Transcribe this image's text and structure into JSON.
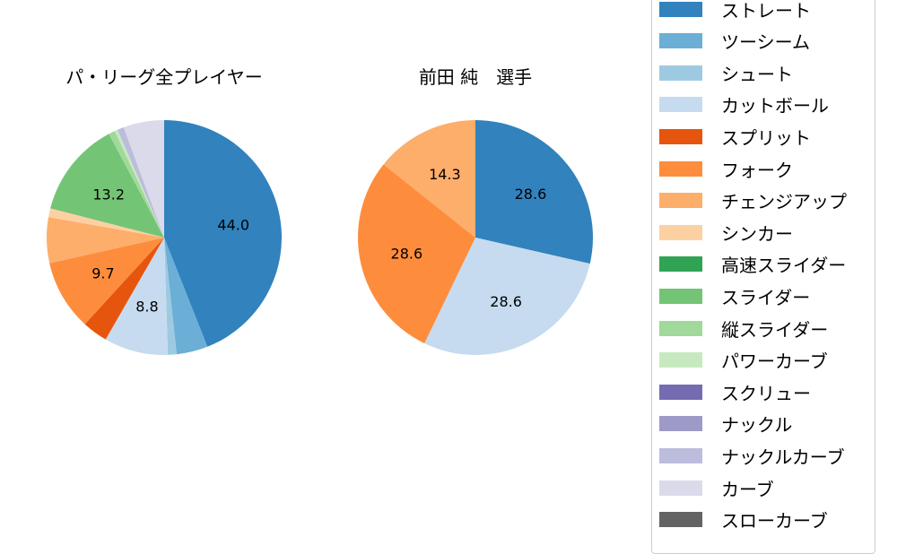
{
  "chart_data": [
    {
      "type": "pie",
      "title": "パ・リーグ全プレイヤー",
      "start_angle": 90,
      "direction": "clockwise",
      "categories": [
        "ストレート",
        "ツーシーム",
        "シュート",
        "カットボール",
        "スプリット",
        "フォーク",
        "チェンジアップ",
        "シンカー",
        "高速スライダー",
        "スライダー",
        "縦スライダー",
        "パワーカーブ",
        "スクリュー",
        "ナックル",
        "ナックルカーブ",
        "カーブ",
        "スローカーブ"
      ],
      "values": [
        44.0,
        4.3,
        1.2,
        8.8,
        3.5,
        9.7,
        6.3,
        1.2,
        0.0,
        13.2,
        0.9,
        0.4,
        0.0,
        0.0,
        0.9,
        5.6,
        0.0
      ],
      "data_labels": {
        "ストレート": "44.0",
        "カットボール": "8.8",
        "フォーク": "9.7",
        "スライダー": "13.2"
      }
    },
    {
      "type": "pie",
      "title": "前田 純　選手",
      "start_angle": 90,
      "direction": "clockwise",
      "categories": [
        "ストレート",
        "ツーシーム",
        "シュート",
        "カットボール",
        "スプリット",
        "フォーク",
        "チェンジアップ",
        "シンカー",
        "高速スライダー",
        "スライダー",
        "縦スライダー",
        "パワーカーブ",
        "スクリュー",
        "ナックル",
        "ナックルカーブ",
        "カーブ",
        "スローカーブ"
      ],
      "values": [
        28.6,
        0,
        0,
        28.6,
        0,
        28.6,
        14.3,
        0,
        0,
        0,
        0,
        0,
        0,
        0,
        0,
        0,
        0
      ],
      "data_labels": {
        "ストレート": "28.6",
        "カットボール": "28.6",
        "フォーク": "28.6",
        "チェンジアップ": "14.3"
      }
    }
  ],
  "titles": {
    "left": "パ・リーグ全プレイヤー",
    "right": "前田 純　選手"
  },
  "legend": {
    "items": [
      {
        "label": "ストレート",
        "color": "#3182bd"
      },
      {
        "label": "ツーシーム",
        "color": "#6baed6"
      },
      {
        "label": "シュート",
        "color": "#9ecae1"
      },
      {
        "label": "カットボール",
        "color": "#c6dbef"
      },
      {
        "label": "スプリット",
        "color": "#e6550d"
      },
      {
        "label": "フォーク",
        "color": "#fd8d3c"
      },
      {
        "label": "チェンジアップ",
        "color": "#fdae6b"
      },
      {
        "label": "シンカー",
        "color": "#fdd0a2"
      },
      {
        "label": "高速スライダー",
        "color": "#31a354"
      },
      {
        "label": "スライダー",
        "color": "#74c476"
      },
      {
        "label": "縦スライダー",
        "color": "#a1d99b"
      },
      {
        "label": "パワーカーブ",
        "color": "#c7e9c0"
      },
      {
        "label": "スクリュー",
        "color": "#756bb1"
      },
      {
        "label": "ナックル",
        "color": "#9e9ac8"
      },
      {
        "label": "ナックルカーブ",
        "color": "#bcbddc"
      },
      {
        "label": "カーブ",
        "color": "#dadaeb"
      },
      {
        "label": "スローカーブ",
        "color": "#636363"
      }
    ]
  }
}
